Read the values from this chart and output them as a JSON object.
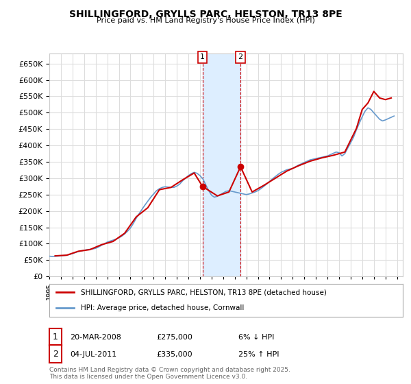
{
  "title": "SHILLINGFORD, GRYLLS PARC, HELSTON, TR13 8PE",
  "subtitle": "Price paid vs. HM Land Registry's House Price Index (HPI)",
  "ylabel": "",
  "ylim": [
    0,
    680000
  ],
  "yticks": [
    0,
    50000,
    100000,
    150000,
    200000,
    250000,
    300000,
    350000,
    400000,
    450000,
    500000,
    550000,
    600000,
    650000
  ],
  "xlim_start": 1995.0,
  "xlim_end": 2025.5,
  "background_color": "#ffffff",
  "plot_bg_color": "#ffffff",
  "grid_color": "#dddddd",
  "line1_color": "#cc0000",
  "line2_color": "#6699cc",
  "marker1_date": 2008.22,
  "marker2_date": 2011.5,
  "marker1_price": 275000,
  "marker2_price": 335000,
  "shaded_region_color": "#ddeeff",
  "annotation1": {
    "label": "1",
    "date": "20-MAR-2008",
    "price": "£275,000",
    "pct": "6% ↓ HPI"
  },
  "annotation2": {
    "label": "2",
    "date": "04-JUL-2011",
    "price": "£335,000",
    "pct": "25% ↑ HPI"
  },
  "legend1": "SHILLINGFORD, GRYLLS PARC, HELSTON, TR13 8PE (detached house)",
  "legend2": "HPI: Average price, detached house, Cornwall",
  "footer": "Contains HM Land Registry data © Crown copyright and database right 2025.\nThis data is licensed under the Open Government Licence v3.0.",
  "hpi_data": {
    "years": [
      1995.0,
      1995.25,
      1995.5,
      1995.75,
      1996.0,
      1996.25,
      1996.5,
      1996.75,
      1997.0,
      1997.25,
      1997.5,
      1997.75,
      1998.0,
      1998.25,
      1998.5,
      1998.75,
      1999.0,
      1999.25,
      1999.5,
      1999.75,
      2000.0,
      2000.25,
      2000.5,
      2000.75,
      2001.0,
      2001.25,
      2001.5,
      2001.75,
      2002.0,
      2002.25,
      2002.5,
      2002.75,
      2003.0,
      2003.25,
      2003.5,
      2003.75,
      2004.0,
      2004.25,
      2004.5,
      2004.75,
      2005.0,
      2005.25,
      2005.5,
      2005.75,
      2006.0,
      2006.25,
      2006.5,
      2006.75,
      2007.0,
      2007.25,
      2007.5,
      2007.75,
      2008.0,
      2008.25,
      2008.5,
      2008.75,
      2009.0,
      2009.25,
      2009.5,
      2009.75,
      2010.0,
      2010.25,
      2010.5,
      2010.75,
      2011.0,
      2011.25,
      2011.5,
      2011.75,
      2012.0,
      2012.25,
      2012.5,
      2012.75,
      2013.0,
      2013.25,
      2013.5,
      2013.75,
      2014.0,
      2014.25,
      2014.5,
      2014.75,
      2015.0,
      2015.25,
      2015.5,
      2015.75,
      2016.0,
      2016.25,
      2016.5,
      2016.75,
      2017.0,
      2017.25,
      2017.5,
      2017.75,
      2018.0,
      2018.25,
      2018.5,
      2018.75,
      2019.0,
      2019.25,
      2019.5,
      2019.75,
      2020.0,
      2020.25,
      2020.5,
      2020.75,
      2021.0,
      2021.25,
      2021.5,
      2021.75,
      2022.0,
      2022.25,
      2022.5,
      2022.75,
      2023.0,
      2023.25,
      2023.5,
      2023.75,
      2024.0,
      2024.25,
      2024.5,
      2024.75
    ],
    "values": [
      62000,
      61000,
      61500,
      62000,
      63000,
      64000,
      65000,
      67000,
      70000,
      73000,
      76000,
      78000,
      80000,
      82000,
      83000,
      84000,
      86000,
      90000,
      95000,
      100000,
      105000,
      108000,
      111000,
      114000,
      118000,
      123000,
      130000,
      138000,
      148000,
      162000,
      178000,
      192000,
      205000,
      218000,
      230000,
      242000,
      252000,
      262000,
      268000,
      272000,
      274000,
      273000,
      272000,
      272000,
      276000,
      282000,
      292000,
      300000,
      308000,
      314000,
      318000,
      315000,
      308000,
      298000,
      280000,
      262000,
      248000,
      242000,
      245000,
      250000,
      255000,
      260000,
      262000,
      260000,
      258000,
      256000,
      254000,
      252000,
      250000,
      252000,
      255000,
      258000,
      262000,
      268000,
      275000,
      282000,
      290000,
      298000,
      305000,
      312000,
      318000,
      322000,
      326000,
      328000,
      330000,
      335000,
      340000,
      344000,
      348000,
      352000,
      356000,
      358000,
      360000,
      362000,
      364000,
      366000,
      368000,
      372000,
      376000,
      380000,
      378000,
      368000,
      375000,
      392000,
      408000,
      425000,
      448000,
      468000,
      488000,
      505000,
      515000,
      510000,
      500000,
      490000,
      480000,
      475000,
      478000,
      482000,
      486000,
      490000
    ]
  },
  "property_data": {
    "years": [
      1995.5,
      1996.5,
      1997.5,
      1998.5,
      1999.5,
      2000.5,
      2001.5,
      2002.5,
      2003.5,
      2004.5,
      2005.5,
      2006.5,
      2007.5,
      2008.22,
      2009.5,
      2010.5,
      2011.5,
      2012.5,
      2013.5,
      2014.5,
      2015.5,
      2016.5,
      2017.5,
      2018.5,
      2019.5,
      2020.5,
      2021.5,
      2022.0,
      2022.5,
      2023.0,
      2023.5,
      2024.0,
      2024.5
    ],
    "values": [
      63000,
      65000,
      77000,
      82000,
      97000,
      107000,
      132000,
      182000,
      210000,
      265000,
      272000,
      295000,
      316000,
      275000,
      246000,
      258000,
      335000,
      258000,
      278000,
      300000,
      322000,
      338000,
      352000,
      362000,
      370000,
      380000,
      452000,
      510000,
      530000,
      565000,
      545000,
      540000,
      545000
    ]
  }
}
